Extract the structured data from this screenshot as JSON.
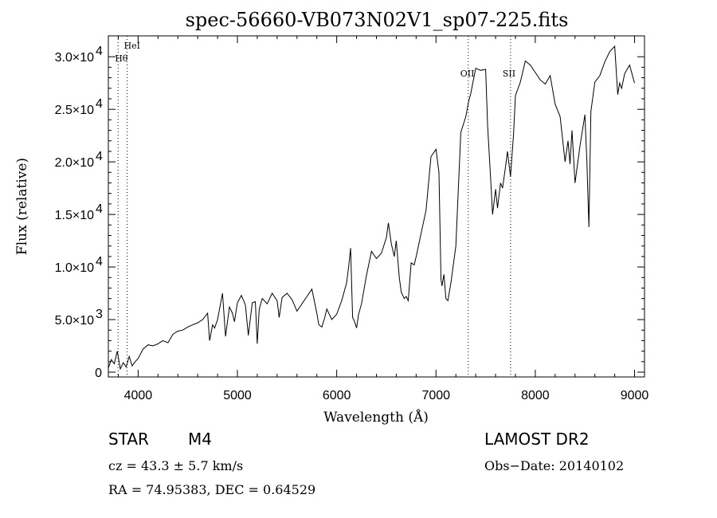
{
  "chart_data": {
    "type": "line",
    "title": "spec-56660-VB073N02V1_sp07-225.fits",
    "xlabel": "Wavelength (Å)",
    "ylabel": "Flux (relative)",
    "xlim": [
      3700,
      9100
    ],
    "ylim": [
      0,
      31000
    ],
    "xticks": [
      4000,
      5000,
      6000,
      7000,
      8000,
      9000
    ],
    "xtick_labels": [
      "4000",
      "5000",
      "6000",
      "7000",
      "8000",
      "9000"
    ],
    "yticks": [
      0,
      5000,
      10000,
      15000,
      20000,
      25000,
      30000
    ],
    "ytick_labels": [
      {
        "mant": "0",
        "exp": ""
      },
      {
        "mant": "5.0×10",
        "exp": "3"
      },
      {
        "mant": "1.0×10",
        "exp": "4"
      },
      {
        "mant": "1.5×10",
        "exp": "4"
      },
      {
        "mant": "2.0×10",
        "exp": "4"
      },
      {
        "mant": "2.5×10",
        "exp": "4"
      },
      {
        "mant": "3.0×10",
        "exp": "4"
      }
    ],
    "spectral_lines": [
      {
        "name": "HeI",
        "wavelength": 3889
      },
      {
        "name": "Hθ",
        "wavelength": 3798
      },
      {
        "name": "OII",
        "wavelength": 7325
      },
      {
        "name": "SII",
        "wavelength": 7751
      }
    ],
    "series": [
      {
        "name": "flux",
        "x": [
          3700,
          3730,
          3760,
          3790,
          3820,
          3850,
          3880,
          3910,
          3940,
          3970,
          4000,
          4050,
          4100,
          4150,
          4200,
          4250,
          4300,
          4350,
          4400,
          4450,
          4500,
          4550,
          4600,
          4650,
          4700,
          4720,
          4750,
          4770,
          4800,
          4850,
          4880,
          4920,
          4950,
          4970,
          5000,
          5040,
          5080,
          5110,
          5150,
          5180,
          5200,
          5220,
          5250,
          5300,
          5350,
          5400,
          5420,
          5450,
          5500,
          5550,
          5600,
          5650,
          5700,
          5750,
          5800,
          5820,
          5850,
          5880,
          5900,
          5950,
          6000,
          6050,
          6100,
          6120,
          6140,
          6160,
          6180,
          6200,
          6220,
          6250,
          6300,
          6350,
          6400,
          6450,
          6500,
          6520,
          6550,
          6580,
          6600,
          6630,
          6650,
          6680,
          6700,
          6720,
          6750,
          6780,
          6800,
          6850,
          6900,
          6950,
          7000,
          7030,
          7050,
          7060,
          7080,
          7100,
          7120,
          7150,
          7200,
          7250,
          7300,
          7330,
          7350,
          7400,
          7450,
          7500,
          7520,
          7550,
          7570,
          7600,
          7620,
          7650,
          7670,
          7700,
          7720,
          7750,
          7780,
          7800,
          7850,
          7900,
          7950,
          8000,
          8050,
          8100,
          8150,
          8200,
          8250,
          8300,
          8330,
          8350,
          8370,
          8400,
          8450,
          8500,
          8520,
          8540,
          8560,
          8600,
          8650,
          8700,
          8750,
          8800,
          8830,
          8850,
          8870,
          8900,
          8950,
          9000
        ],
        "y": [
          400,
          1200,
          800,
          2000,
          300,
          900,
          500,
          1500,
          600,
          1000,
          1300,
          2200,
          2600,
          2500,
          2700,
          3000,
          2800,
          3600,
          3900,
          4000,
          4300,
          4500,
          4700,
          5000,
          5600,
          3000,
          4500,
          4200,
          5000,
          7500,
          3400,
          6200,
          5600,
          4800,
          6600,
          7300,
          6400,
          3500,
          6600,
          6700,
          2700,
          6000,
          7000,
          6500,
          7500,
          6800,
          5200,
          7100,
          7500,
          6900,
          5800,
          6500,
          7200,
          7900,
          5600,
          4500,
          4300,
          5200,
          6000,
          5000,
          5500,
          6800,
          8500,
          10000,
          11800,
          5200,
          4800,
          4200,
          5500,
          6500,
          9200,
          11500,
          10800,
          11300,
          12800,
          14200,
          12200,
          11000,
          12500,
          9000,
          7600,
          7000,
          7200,
          6800,
          10400,
          10200,
          11000,
          13200,
          15400,
          20500,
          21200,
          19000,
          8900,
          8200,
          9300,
          7000,
          6800,
          8500,
          12000,
          22800,
          24300,
          25800,
          26500,
          28900,
          28700,
          28800,
          23400,
          18500,
          15000,
          17400,
          15600,
          18000,
          17500,
          19500,
          21000,
          18600,
          22500,
          26300,
          27600,
          29600,
          29200,
          28500,
          27800,
          27400,
          28200,
          25500,
          24300,
          20000,
          22000,
          19800,
          23000,
          18000,
          21500,
          24500,
          20000,
          13800,
          24800,
          27600,
          28200,
          29500,
          30500,
          31000,
          26400,
          27500,
          27000,
          28400,
          29200,
          27500
        ]
      }
    ]
  },
  "info": {
    "object_class": "STAR",
    "subclass": "M4",
    "survey": "LAMOST DR2",
    "redshift": "cz = 43.3 ± 5.7 km/s",
    "obs_date": "Obs−Date: 20140102",
    "coords": "RA =  74.95383, DEC =   0.64529"
  }
}
